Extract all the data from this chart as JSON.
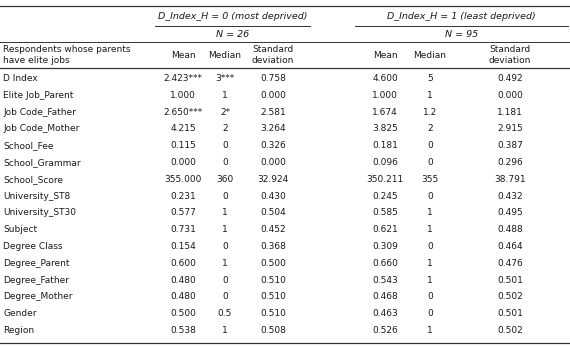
{
  "group1_header": "D_Index_H = 0 (most deprived)",
  "group2_header": "D_Index_H = 1 (least deprived)",
  "group1_n": "N = 26",
  "group2_n": "N = 95",
  "row_header": "Respondents whose parents\nhave elite jobs",
  "col_stats": [
    "Mean",
    "Median",
    "Standard\ndeviation",
    "Mean",
    "Median",
    "Standard\ndeviation"
  ],
  "row_labels": [
    "D Index",
    "Elite Job_Parent",
    "Job Code_Father",
    "Job Code_Mother",
    "School_Fee",
    "School_Grammar",
    "School_Score",
    "University_ST8",
    "University_ST30",
    "Subject",
    "Degree Class",
    "Degree_Parent",
    "Degree_Father",
    "Degree_Mother",
    "Gender",
    "Region"
  ],
  "data": [
    [
      "2.423***",
      "3***",
      "0.758",
      "4.600",
      "5",
      "0.492"
    ],
    [
      "1.000",
      "1",
      "0.000",
      "1.000",
      "1",
      "0.000"
    ],
    [
      "2.650***",
      "2*",
      "2.581",
      "1.674",
      "1.2",
      "1.181"
    ],
    [
      "4.215",
      "2",
      "3.264",
      "3.825",
      "2",
      "2.915"
    ],
    [
      "0.115",
      "0",
      "0.326",
      "0.181",
      "0",
      "0.387"
    ],
    [
      "0.000",
      "0",
      "0.000",
      "0.096",
      "0",
      "0.296"
    ],
    [
      "355.000",
      "360",
      "32.924",
      "350.211",
      "355",
      "38.791"
    ],
    [
      "0.231",
      "0",
      "0.430",
      "0.245",
      "0",
      "0.432"
    ],
    [
      "0.577",
      "1",
      "0.504",
      "0.585",
      "1",
      "0.495"
    ],
    [
      "0.731",
      "1",
      "0.452",
      "0.621",
      "1",
      "0.488"
    ],
    [
      "0.154",
      "0",
      "0.368",
      "0.309",
      "0",
      "0.464"
    ],
    [
      "0.600",
      "1",
      "0.500",
      "0.660",
      "1",
      "0.476"
    ],
    [
      "0.480",
      "0",
      "0.510",
      "0.543",
      "1",
      "0.501"
    ],
    [
      "0.480",
      "0",
      "0.510",
      "0.468",
      "0",
      "0.502"
    ],
    [
      "0.500",
      "0.5",
      "0.510",
      "0.463",
      "0",
      "0.501"
    ],
    [
      "0.538",
      "1",
      "0.508",
      "0.526",
      "1",
      "0.502"
    ]
  ],
  "bg_color": "#ffffff",
  "text_color": "#1a1a1a",
  "line_color": "#333333"
}
